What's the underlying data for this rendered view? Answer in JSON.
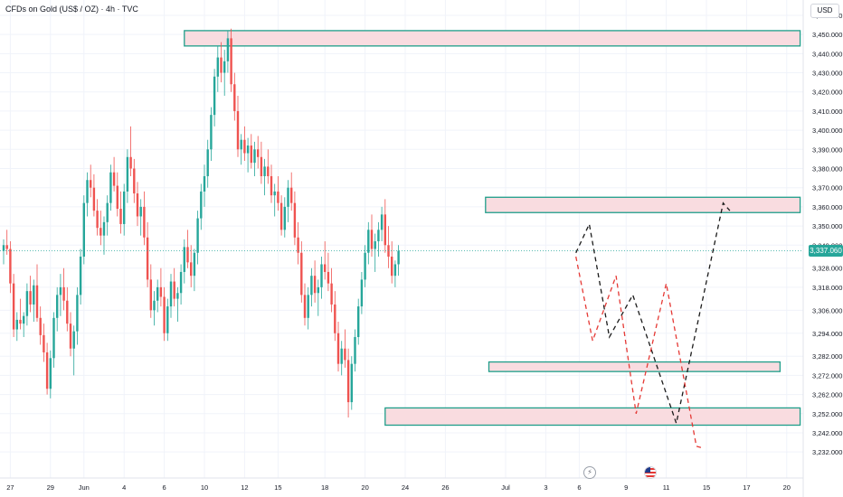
{
  "header": {
    "title": "CFDs on Gold (US$ / OZ) · 4h · TVC",
    "currency": "USD"
  },
  "price_label": "3,337.060",
  "colors": {
    "up": "#26a69a",
    "down": "#ef5350",
    "zone_fill": "#f9dce0",
    "zone_border": "#1f9e8a",
    "path_black": "#1a1a1a",
    "path_red": "#e53935",
    "current_price_line": "#26a69a"
  },
  "events": [
    {
      "icon": "lightning-icon",
      "glyph": "⚡"
    },
    {
      "icon": "us-flag-icon"
    }
  ],
  "chart_data": {
    "type": "candlestick",
    "title": "CFDs on Gold (US$ / OZ) · 4h · TVC",
    "ylim": [
      3225,
      3468
    ],
    "y_ticks": [
      {
        "value": 3460,
        "label": "3,460.000"
      },
      {
        "value": 3450,
        "label": "3,450.000"
      },
      {
        "value": 3440,
        "label": "3,440.000"
      },
      {
        "value": 3430,
        "label": "3,430.000"
      },
      {
        "value": 3420,
        "label": "3,420.000"
      },
      {
        "value": 3410,
        "label": "3,410.000"
      },
      {
        "value": 3400,
        "label": "3,400.000"
      },
      {
        "value": 3390,
        "label": "3,390.000"
      },
      {
        "value": 3380,
        "label": "3,380.000"
      },
      {
        "value": 3370,
        "label": "3,370.000"
      },
      {
        "value": 3360,
        "label": "3,360.000"
      },
      {
        "value": 3350,
        "label": "3,350.000"
      },
      {
        "value": 3340,
        "label": "3,340.000"
      },
      {
        "value": 3328,
        "label": "3,328.000"
      },
      {
        "value": 3318,
        "label": "3,318.000"
      },
      {
        "value": 3306,
        "label": "3,306.000"
      },
      {
        "value": 3294,
        "label": "3,294.000"
      },
      {
        "value": 3282,
        "label": "3,282.000"
      },
      {
        "value": 3272,
        "label": "3,272.000"
      },
      {
        "value": 3262,
        "label": "3,262.000"
      },
      {
        "value": 3252,
        "label": "3,252.000"
      },
      {
        "value": 3242,
        "label": "3,242.000"
      },
      {
        "value": 3232,
        "label": "3,232.000"
      }
    ],
    "x_ticks": [
      {
        "label": "27",
        "bar": 2
      },
      {
        "label": "29",
        "bar": 14
      },
      {
        "label": "Jun",
        "bar": 24
      },
      {
        "label": "4",
        "bar": 36
      },
      {
        "label": "6",
        "bar": 48
      },
      {
        "label": "10",
        "bar": 60
      },
      {
        "label": "12",
        "bar": 72
      },
      {
        "label": "15",
        "bar": 82
      },
      {
        "label": "18",
        "bar": 96
      },
      {
        "label": "20",
        "bar": 108
      },
      {
        "label": "24",
        "bar": 120
      },
      {
        "label": "26",
        "bar": 132
      },
      {
        "label": "Jul",
        "bar": 150
      },
      {
        "label": "3",
        "bar": 162
      },
      {
        "label": "6",
        "bar": 172
      },
      {
        "label": "9",
        "bar": 186
      },
      {
        "label": "11",
        "bar": 198
      },
      {
        "label": "15",
        "bar": 210
      },
      {
        "label": "17",
        "bar": 222
      },
      {
        "label": "20",
        "bar": 234
      }
    ],
    "current_price": 3337.06,
    "zones": [
      {
        "from_bar": 54,
        "to_bar": 238,
        "low": 3444,
        "high": 3452
      },
      {
        "from_bar": 144,
        "to_bar": 238,
        "low": 3357,
        "high": 3365
      },
      {
        "from_bar": 145,
        "to_bar": 232,
        "low": 3274,
        "high": 3279
      },
      {
        "from_bar": 114,
        "to_bar": 238,
        "low": 3246,
        "high": 3255
      }
    ],
    "projections": [
      {
        "name": "",
        "style": "dashed",
        "color": "#1a1a1a",
        "points": [
          [
            171,
            3336
          ],
          [
            175,
            3351
          ],
          [
            181,
            3292
          ],
          [
            188,
            3314
          ],
          [
            201,
            3247
          ],
          [
            215,
            3362
          ],
          [
            217,
            3358
          ]
        ]
      },
      {
        "name": "",
        "style": "dashed",
        "color": "#e53935",
        "points": [
          [
            171,
            3334
          ],
          [
            176,
            3290
          ],
          [
            183,
            3324
          ],
          [
            189,
            3252
          ],
          [
            198,
            3320
          ],
          [
            207,
            3235
          ],
          [
            209,
            3234
          ]
        ]
      }
    ],
    "candles": [
      [
        3337,
        3343,
        3330,
        3340
      ],
      [
        3340,
        3348,
        3335,
        3338
      ],
      [
        3338,
        3342,
        3315,
        3320
      ],
      [
        3320,
        3325,
        3292,
        3296
      ],
      [
        3296,
        3305,
        3290,
        3301
      ],
      [
        3301,
        3312,
        3296,
        3299
      ],
      [
        3299,
        3305,
        3292,
        3303
      ],
      [
        3303,
        3320,
        3298,
        3316
      ],
      [
        3316,
        3324,
        3305,
        3309
      ],
      [
        3309,
        3322,
        3300,
        3319
      ],
      [
        3319,
        3330,
        3300,
        3302
      ],
      [
        3302,
        3308,
        3288,
        3293
      ],
      [
        3293,
        3299,
        3279,
        3284
      ],
      [
        3284,
        3289,
        3262,
        3265
      ],
      [
        3265,
        3285,
        3260,
        3281
      ],
      [
        3281,
        3305,
        3276,
        3302
      ],
      [
        3302,
        3318,
        3295,
        3314
      ],
      [
        3314,
        3325,
        3303,
        3318
      ],
      [
        3318,
        3328,
        3306,
        3311
      ],
      [
        3311,
        3318,
        3295,
        3299
      ],
      [
        3299,
        3305,
        3282,
        3286
      ],
      [
        3286,
        3298,
        3272,
        3295
      ],
      [
        3295,
        3318,
        3288,
        3314
      ],
      [
        3314,
        3338,
        3309,
        3334
      ],
      [
        3334,
        3366,
        3330,
        3362
      ],
      [
        3362,
        3378,
        3355,
        3374
      ],
      [
        3374,
        3382,
        3365,
        3370
      ],
      [
        3370,
        3377,
        3355,
        3358
      ],
      [
        3358,
        3364,
        3345,
        3349
      ],
      [
        3349,
        3358,
        3340,
        3345
      ],
      [
        3345,
        3355,
        3335,
        3352
      ],
      [
        3352,
        3366,
        3345,
        3362
      ],
      [
        3362,
        3382,
        3358,
        3378
      ],
      [
        3378,
        3386,
        3368,
        3371
      ],
      [
        3371,
        3378,
        3355,
        3359
      ],
      [
        3359,
        3368,
        3346,
        3351
      ],
      [
        3351,
        3372,
        3345,
        3368
      ],
      [
        3368,
        3390,
        3362,
        3386
      ],
      [
        3386,
        3402,
        3376,
        3380
      ],
      [
        3380,
        3385,
        3362,
        3367
      ],
      [
        3367,
        3373,
        3350,
        3355
      ],
      [
        3355,
        3364,
        3345,
        3360
      ],
      [
        3360,
        3368,
        3340,
        3344
      ],
      [
        3344,
        3352,
        3318,
        3322
      ],
      [
        3322,
        3330,
        3302,
        3306
      ],
      [
        3306,
        3316,
        3298,
        3311
      ],
      [
        3311,
        3322,
        3305,
        3318
      ],
      [
        3318,
        3328,
        3308,
        3313
      ],
      [
        3313,
        3318,
        3290,
        3294
      ],
      [
        3294,
        3312,
        3290,
        3308
      ],
      [
        3308,
        3325,
        3302,
        3321
      ],
      [
        3321,
        3328,
        3308,
        3312
      ],
      [
        3312,
        3318,
        3300,
        3315
      ],
      [
        3315,
        3330,
        3309,
        3326
      ],
      [
        3326,
        3343,
        3320,
        3339
      ],
      [
        3339,
        3348,
        3328,
        3331
      ],
      [
        3331,
        3340,
        3318,
        3324
      ],
      [
        3324,
        3338,
        3316,
        3336
      ],
      [
        3336,
        3358,
        3330,
        3354
      ],
      [
        3354,
        3372,
        3348,
        3368
      ],
      [
        3368,
        3382,
        3360,
        3376
      ],
      [
        3376,
        3395,
        3370,
        3390
      ],
      [
        3390,
        3412,
        3384,
        3408
      ],
      [
        3408,
        3432,
        3402,
        3428
      ],
      [
        3428,
        3444,
        3420,
        3438
      ],
      [
        3438,
        3446,
        3425,
        3430
      ],
      [
        3430,
        3442,
        3418,
        3436
      ],
      [
        3436,
        3452,
        3430,
        3448
      ],
      [
        3448,
        3453,
        3420,
        3424
      ],
      [
        3424,
        3430,
        3405,
        3410
      ],
      [
        3410,
        3418,
        3386,
        3390
      ],
      [
        3390,
        3398,
        3382,
        3395
      ],
      [
        3395,
        3402,
        3384,
        3388
      ],
      [
        3388,
        3396,
        3378,
        3392
      ],
      [
        3392,
        3398,
        3380,
        3383
      ],
      [
        3383,
        3394,
        3376,
        3390
      ],
      [
        3390,
        3397,
        3380,
        3386
      ],
      [
        3386,
        3394,
        3372,
        3376
      ],
      [
        3376,
        3385,
        3366,
        3381
      ],
      [
        3381,
        3390,
        3372,
        3376
      ],
      [
        3376,
        3382,
        3362,
        3366
      ],
      [
        3366,
        3372,
        3355,
        3368
      ],
      [
        3368,
        3376,
        3358,
        3362
      ],
      [
        3362,
        3366,
        3345,
        3348
      ],
      [
        3348,
        3365,
        3344,
        3360
      ],
      [
        3360,
        3374,
        3352,
        3370
      ],
      [
        3370,
        3378,
        3358,
        3362
      ],
      [
        3362,
        3368,
        3340,
        3344
      ],
      [
        3344,
        3352,
        3330,
        3336
      ],
      [
        3336,
        3342,
        3310,
        3314
      ],
      [
        3314,
        3320,
        3298,
        3302
      ],
      [
        3302,
        3318,
        3296,
        3314
      ],
      [
        3314,
        3328,
        3308,
        3324
      ],
      [
        3324,
        3332,
        3310,
        3315
      ],
      [
        3315,
        3322,
        3303,
        3318
      ],
      [
        3318,
        3334,
        3312,
        3330
      ],
      [
        3330,
        3342,
        3322,
        3326
      ],
      [
        3326,
        3336,
        3316,
        3320
      ],
      [
        3320,
        3328,
        3305,
        3309
      ],
      [
        3309,
        3316,
        3290,
        3294
      ],
      [
        3294,
        3300,
        3274,
        3278
      ],
      [
        3278,
        3290,
        3272,
        3286
      ],
      [
        3286,
        3296,
        3276,
        3280
      ],
      [
        3280,
        3286,
        3250,
        3258
      ],
      [
        3258,
        3282,
        3254,
        3278
      ],
      [
        3278,
        3296,
        3274,
        3292
      ],
      [
        3292,
        3312,
        3288,
        3308
      ],
      [
        3308,
        3326,
        3304,
        3322
      ],
      [
        3322,
        3340,
        3318,
        3336
      ],
      [
        3336,
        3352,
        3330,
        3348
      ],
      [
        3348,
        3356,
        3334,
        3338
      ],
      [
        3338,
        3346,
        3326,
        3342
      ],
      [
        3342,
        3352,
        3334,
        3348
      ],
      [
        3348,
        3360,
        3342,
        3356
      ],
      [
        3356,
        3364,
        3336,
        3340
      ],
      [
        3340,
        3350,
        3328,
        3334
      ],
      [
        3334,
        3342,
        3320,
        3324
      ],
      [
        3324,
        3332,
        3318,
        3330
      ],
      [
        3330,
        3340,
        3324,
        3337
      ]
    ]
  }
}
